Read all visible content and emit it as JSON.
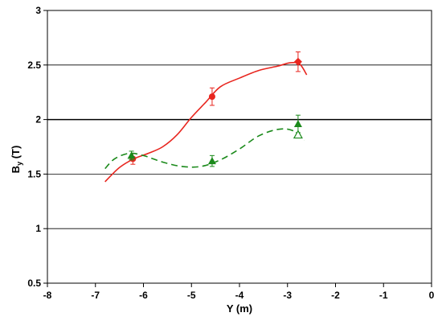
{
  "chart_data": {
    "type": "line",
    "xlabel": "Y (m)",
    "ylabel_main": "B",
    "ylabel_sub": "y",
    "ylabel_unit": " (T)",
    "xlim": [
      -8,
      0
    ],
    "ylim": [
      0.5,
      3
    ],
    "xticks": [
      -8,
      -7,
      -6,
      -5,
      -4,
      -3,
      -2,
      -1,
      0
    ],
    "xtick_labels": [
      "-8",
      "-7",
      "-6",
      "-5",
      "-4",
      "-3",
      "-2",
      "-1",
      "0"
    ],
    "yticks": [
      0.5,
      1,
      1.5,
      2,
      2.5,
      3
    ],
    "ytick_labels": [
      "0.5",
      "1",
      "1.5",
      "2",
      "2.5",
      "3"
    ],
    "grid": "horizontal",
    "series": [
      {
        "color": "#e8261f",
        "style": "solid",
        "curve": [
          [
            -6.8,
            1.43
          ],
          [
            -6.5,
            1.56
          ],
          [
            -6.2,
            1.64
          ],
          [
            -5.9,
            1.69
          ],
          [
            -5.6,
            1.75
          ],
          [
            -5.3,
            1.86
          ],
          [
            -5.0,
            2.02
          ],
          [
            -4.7,
            2.16
          ],
          [
            -4.4,
            2.3
          ],
          [
            -4.0,
            2.38
          ],
          [
            -3.6,
            2.45
          ],
          [
            -3.2,
            2.49
          ],
          [
            -2.95,
            2.52
          ],
          [
            -2.75,
            2.51
          ],
          [
            -2.6,
            2.41
          ]
        ],
        "points": [
          {
            "x": -6.22,
            "y": 1.64,
            "err": 0.05,
            "marker": "circle"
          },
          {
            "x": -4.57,
            "y": 2.21,
            "err": 0.08,
            "marker": "circle"
          },
          {
            "x": -2.78,
            "y": 2.53,
            "err": 0.09,
            "marker": "diamond"
          }
        ]
      },
      {
        "color": "#1b8a1b",
        "style": "dashed",
        "curve": [
          [
            -6.8,
            1.55
          ],
          [
            -6.6,
            1.64
          ],
          [
            -6.3,
            1.69
          ],
          [
            -6.0,
            1.67
          ],
          [
            -5.6,
            1.61
          ],
          [
            -5.2,
            1.57
          ],
          [
            -4.8,
            1.57
          ],
          [
            -4.4,
            1.63
          ],
          [
            -4.0,
            1.73
          ],
          [
            -3.6,
            1.85
          ],
          [
            -3.2,
            1.91
          ],
          [
            -2.9,
            1.9
          ],
          [
            -2.65,
            1.81
          ]
        ],
        "points": [
          {
            "x": -6.25,
            "y": 1.67,
            "err": 0.04,
            "marker": "triangle"
          },
          {
            "x": -4.57,
            "y": 1.62,
            "err": 0.05,
            "marker": "triangle"
          },
          {
            "x": -2.78,
            "y": 1.96,
            "err": 0.08,
            "marker": "triangle"
          },
          {
            "x": -2.78,
            "y": 1.86,
            "err": 0,
            "marker": "triangle-open"
          }
        ]
      }
    ]
  }
}
